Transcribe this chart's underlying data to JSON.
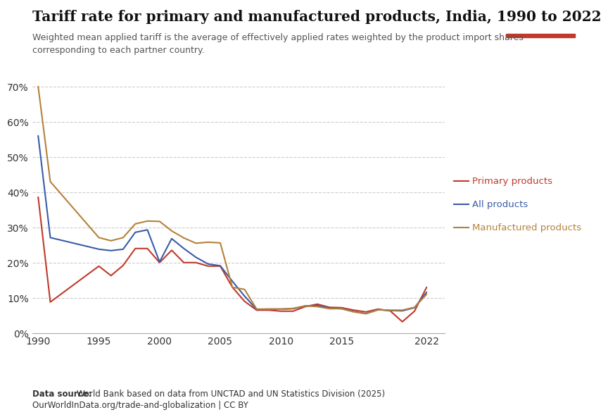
{
  "title": "Tariff rate for primary and manufactured products, India, 1990 to 2022",
  "subtitle": "Weighted mean applied tariff is the average of effectively applied rates weighted by the product import shares\ncorresponding to each partner country.",
  "datasource_bold": "Data source: ",
  "datasource_normal": "World Bank based on data from UNCTAD and UN Statistics Division (2025)",
  "url": "OurWorldInData.org/trade-and-globalization | CC BY",
  "ylim": [
    0,
    0.72
  ],
  "yticks": [
    0.0,
    0.1,
    0.2,
    0.3,
    0.4,
    0.5,
    0.6,
    0.7
  ],
  "ytick_labels": [
    "0%",
    "10%",
    "20%",
    "30%",
    "40%",
    "50%",
    "60%",
    "70%"
  ],
  "xticks": [
    1990,
    1995,
    2000,
    2005,
    2010,
    2015,
    2022
  ],
  "background_color": "#ffffff",
  "series": {
    "primary": {
      "label": "Primary products",
      "color": "#c0392b",
      "years": [
        1990,
        1991,
        1995,
        1996,
        1997,
        1998,
        1999,
        2000,
        2001,
        2002,
        2003,
        2004,
        2005,
        2006,
        2007,
        2008,
        2009,
        2010,
        2011,
        2012,
        2013,
        2014,
        2015,
        2016,
        2017,
        2018,
        2019,
        2020,
        2021,
        2022
      ],
      "values": [
        0.386,
        0.088,
        0.19,
        0.163,
        0.192,
        0.24,
        0.24,
        0.2,
        0.235,
        0.2,
        0.2,
        0.19,
        0.19,
        0.13,
        0.09,
        0.065,
        0.065,
        0.062,
        0.062,
        0.075,
        0.082,
        0.073,
        0.072,
        0.065,
        0.06,
        0.068,
        0.063,
        0.032,
        0.062,
        0.13
      ]
    },
    "all": {
      "label": "All products",
      "color": "#3a5ca8",
      "years": [
        1990,
        1991,
        1995,
        1996,
        1997,
        1998,
        1999,
        2000,
        2001,
        2002,
        2003,
        2004,
        2005,
        2006,
        2007,
        2008,
        2009,
        2010,
        2011,
        2012,
        2013,
        2014,
        2015,
        2016,
        2017,
        2018,
        2019,
        2020,
        2021,
        2022
      ],
      "values": [
        0.56,
        0.271,
        0.238,
        0.234,
        0.238,
        0.286,
        0.293,
        0.202,
        0.268,
        0.24,
        0.215,
        0.196,
        0.191,
        0.147,
        0.105,
        0.067,
        0.068,
        0.068,
        0.069,
        0.077,
        0.078,
        0.071,
        0.069,
        0.061,
        0.055,
        0.066,
        0.064,
        0.063,
        0.072,
        0.116
      ]
    },
    "manufactured": {
      "label": "Manufactured products",
      "color": "#b5813a",
      "years": [
        1990,
        1991,
        1995,
        1996,
        1997,
        1998,
        1999,
        2000,
        2001,
        2002,
        2003,
        2004,
        2005,
        2006,
        2007,
        2008,
        2009,
        2010,
        2011,
        2012,
        2013,
        2014,
        2015,
        2016,
        2017,
        2018,
        2019,
        2020,
        2021,
        2022
      ],
      "values": [
        0.7,
        0.43,
        0.271,
        0.262,
        0.271,
        0.31,
        0.318,
        0.317,
        0.29,
        0.27,
        0.255,
        0.258,
        0.256,
        0.13,
        0.124,
        0.068,
        0.068,
        0.068,
        0.07,
        0.077,
        0.075,
        0.069,
        0.069,
        0.06,
        0.055,
        0.066,
        0.065,
        0.065,
        0.073,
        0.11
      ]
    }
  },
  "legend": [
    {
      "label": "Primary products",
      "color": "#c0392b"
    },
    {
      "label": "All products",
      "color": "#3a5ca8"
    },
    {
      "label": "Manufactured products",
      "color": "#b5813a"
    }
  ],
  "logo_bg": "#1a3259",
  "logo_accent": "#c0392b"
}
